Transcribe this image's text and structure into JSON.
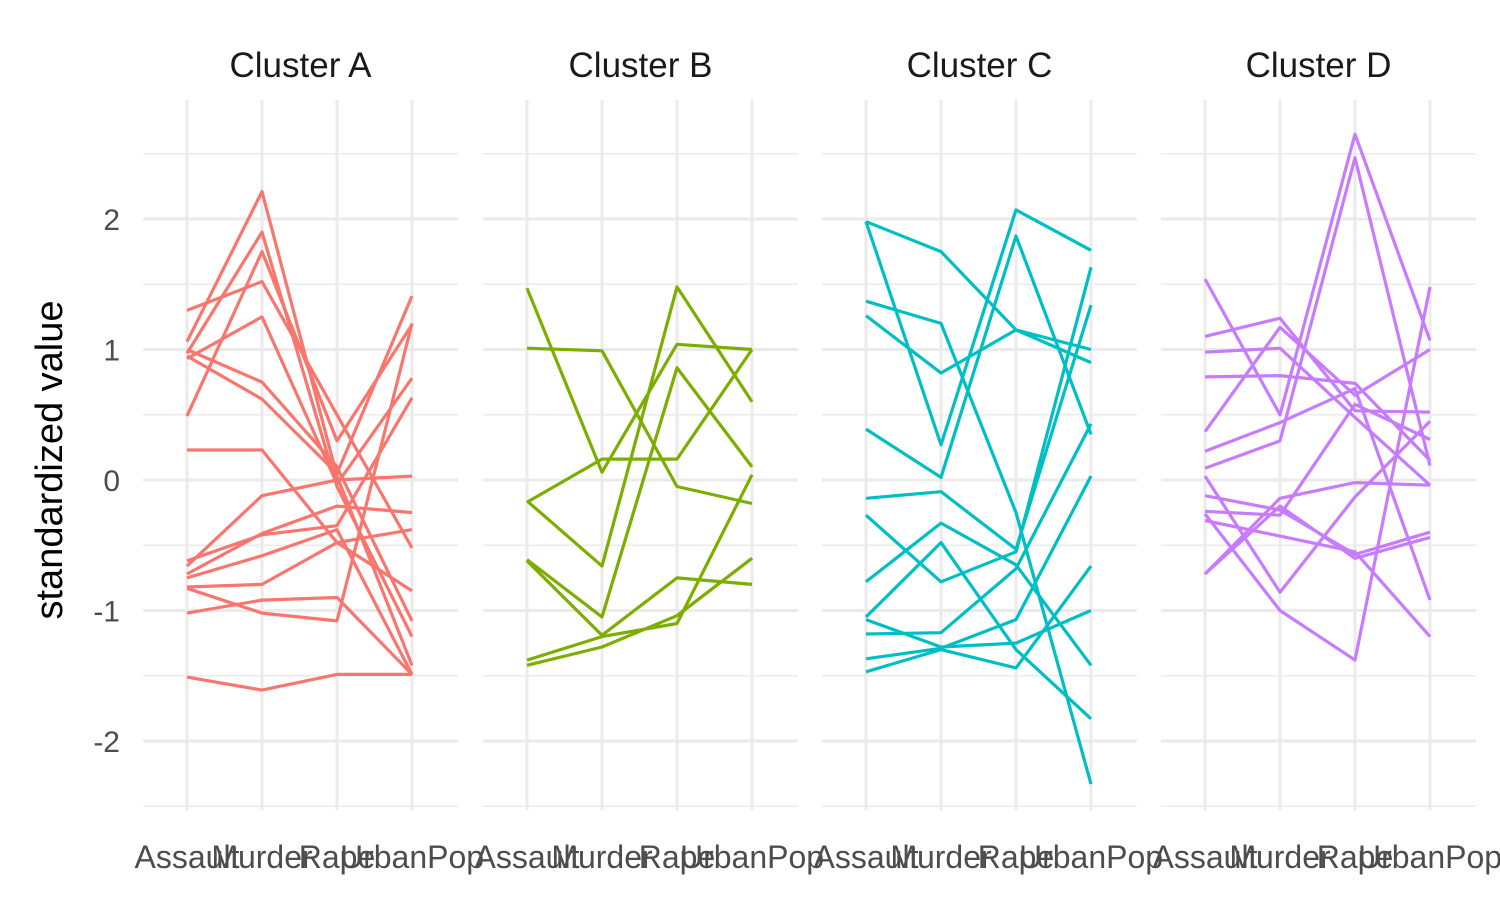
{
  "chart_data": {
    "type": "line",
    "chart_kind": "parallel-coordinates, faceted",
    "title": "",
    "xlabel": "",
    "ylabel": "standardized value",
    "variables": [
      "Assault",
      "Murder",
      "Rape",
      "UrbanPop"
    ],
    "ylim": [
      -2.5,
      2.6
    ],
    "yticks": [
      -2,
      -1,
      0,
      1,
      2
    ],
    "grid": true,
    "legend": "none",
    "facets": [
      {
        "label": "Cluster A",
        "color": "#F8766D",
        "lines": [
          [
            1.3,
            1.52,
            0.5,
            -0.52
          ],
          [
            1.06,
            2.21,
            0.03,
            -1.42
          ],
          [
            0.97,
            1.9,
            -0.05,
            -1.2
          ],
          [
            0.49,
            1.75,
            0.3,
            1.19
          ],
          [
            0.93,
            1.25,
            -0.03,
            0.78
          ],
          [
            1.0,
            0.75,
            0.1,
            -1.08
          ],
          [
            0.95,
            0.62,
            0.05,
            1.41
          ],
          [
            0.23,
            0.23,
            -0.48,
            -0.85
          ],
          [
            -0.62,
            -0.42,
            -0.35,
            0.63
          ],
          [
            -0.66,
            -0.12,
            0.0,
            0.03
          ],
          [
            -0.72,
            -0.41,
            -0.2,
            -0.25
          ],
          [
            -0.75,
            -0.58,
            -0.38,
            -1.49
          ],
          [
            -0.82,
            -0.8,
            -0.48,
            -0.38
          ],
          [
            -1.02,
            -0.92,
            -0.9,
            -1.49
          ],
          [
            -0.83,
            -1.02,
            -1.08,
            1.2
          ],
          [
            -1.51,
            -1.61,
            -1.49,
            -1.49
          ]
        ]
      },
      {
        "label": "Cluster B",
        "color": "#7CAE00",
        "lines": [
          [
            1.01,
            0.99,
            -0.05,
            -0.18
          ],
          [
            1.47,
            0.06,
            1.04,
            1.0
          ],
          [
            -0.17,
            0.16,
            0.16,
            1.0
          ],
          [
            -0.16,
            -0.66,
            1.48,
            0.6
          ],
          [
            -0.61,
            -1.05,
            0.86,
            0.1
          ],
          [
            -0.62,
            -1.19,
            -0.75,
            -0.8
          ],
          [
            -1.38,
            -1.2,
            -1.1,
            0.04
          ],
          [
            -1.42,
            -1.28,
            -1.04,
            -0.6
          ]
        ]
      },
      {
        "label": "Cluster C",
        "color": "#00BFC4",
        "lines": [
          [
            1.98,
            1.75,
            1.15,
            1.0
          ],
          [
            1.37,
            1.2,
            -0.25,
            -2.33
          ],
          [
            1.26,
            0.82,
            1.15,
            0.9
          ],
          [
            1.98,
            0.27,
            2.07,
            1.76
          ],
          [
            0.39,
            0.02,
            1.87,
            0.35
          ],
          [
            -0.14,
            -0.09,
            -0.53,
            1.34
          ],
          [
            -0.27,
            -0.78,
            -0.55,
            1.63
          ],
          [
            -0.78,
            -0.33,
            -0.65,
            -1.42
          ],
          [
            -1.05,
            -0.48,
            -1.3,
            -1.83
          ],
          [
            -1.07,
            -1.28,
            -1.25,
            -1.0
          ],
          [
            -1.18,
            -1.17,
            -0.68,
            0.43
          ],
          [
            -1.37,
            -1.29,
            -1.07,
            0.03
          ],
          [
            -1.47,
            -1.3,
            -1.44,
            -0.66
          ]
        ]
      },
      {
        "label": "Cluster D",
        "color": "#C77CFF",
        "lines": [
          [
            1.54,
            0.5,
            2.65,
            1.07
          ],
          [
            1.1,
            1.24,
            0.53,
            0.52
          ],
          [
            0.98,
            1.01,
            0.48,
            -0.04
          ],
          [
            0.79,
            0.8,
            0.74,
            0.15
          ],
          [
            0.37,
            1.17,
            0.65,
            1.0
          ],
          [
            0.22,
            0.44,
            0.7,
            -0.92
          ],
          [
            0.09,
            0.3,
            2.47,
            0.11
          ],
          [
            0.03,
            -0.86,
            -0.13,
            0.45
          ],
          [
            -0.12,
            -0.23,
            -0.57,
            -0.4
          ],
          [
            -0.24,
            -0.27,
            0.58,
            0.31
          ],
          [
            -0.26,
            -1.0,
            -1.38,
            1.48
          ],
          [
            -0.31,
            -0.43,
            -0.55,
            -1.2
          ],
          [
            -0.72,
            -0.14,
            -0.02,
            -0.04
          ],
          [
            -0.72,
            -0.2,
            -0.6,
            -0.44
          ]
        ]
      }
    ]
  }
}
